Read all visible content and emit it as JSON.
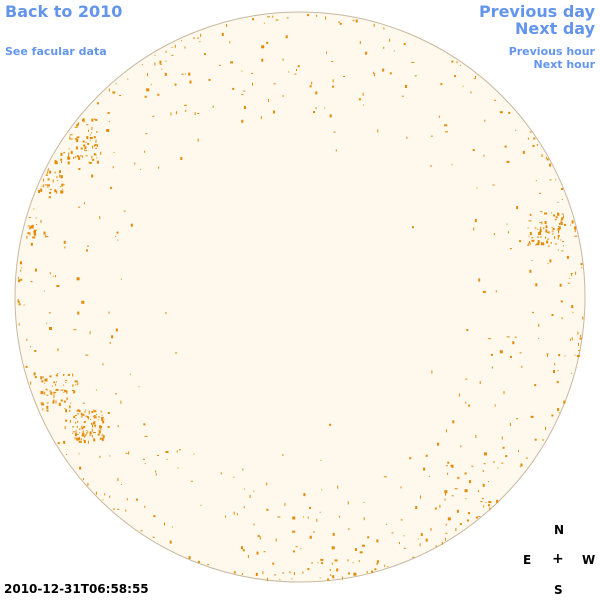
{
  "nav": {
    "back_label": "Back to 2010",
    "facular_label": "See facular data",
    "prev_day_label": "Previous day",
    "next_day_label": "Next day",
    "prev_hour_label": "Previous hour",
    "next_hour_label": "Next hour"
  },
  "compass": {
    "north": "N",
    "east": "E",
    "center": "+",
    "west": "W",
    "south": "S"
  },
  "timestamp": "2010-12-31T06:58:55",
  "colors": {
    "link": "#6495ed",
    "disk_fill": "#fff8ec",
    "disk_edge": "#c8b8a0",
    "feature": "#e38a06"
  }
}
